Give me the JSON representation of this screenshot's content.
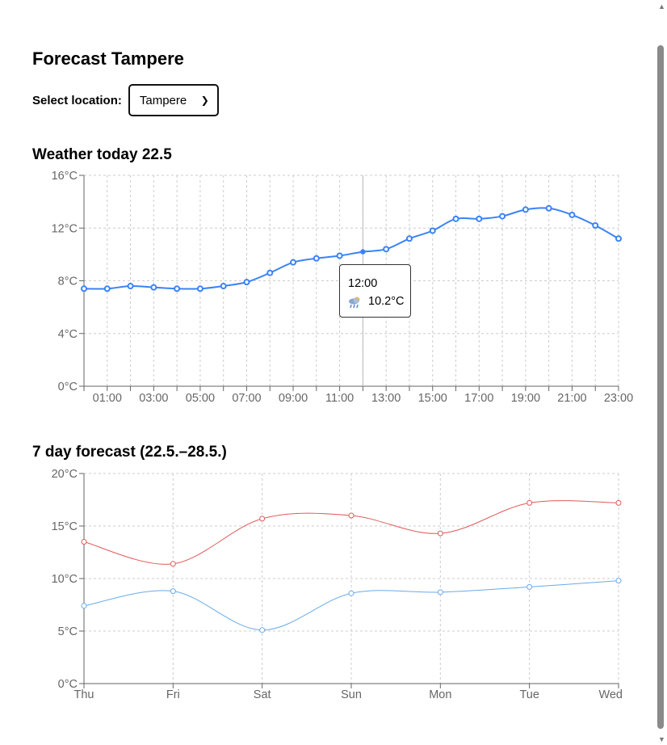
{
  "page": {
    "title": "Forecast Tampere"
  },
  "location": {
    "label": "Select location:",
    "selected": "Tampere"
  },
  "today": {
    "title": "Weather today 22.5",
    "tooltip": {
      "time": "12:00",
      "temp": "10.2°C",
      "icon": "rain-cloud-sun-icon"
    },
    "color": "#3b82f6"
  },
  "week": {
    "title": "7 day forecast (22.5.–28.5.)",
    "max_color": "#e05a5a",
    "min_color": "#6aaae8"
  },
  "chart_data": [
    {
      "type": "line",
      "x": [
        "00:00",
        "01:00",
        "02:00",
        "03:00",
        "04:00",
        "05:00",
        "06:00",
        "07:00",
        "08:00",
        "09:00",
        "10:00",
        "11:00",
        "12:00",
        "13:00",
        "14:00",
        "15:00",
        "16:00",
        "17:00",
        "18:00",
        "19:00",
        "20:00",
        "21:00",
        "22:00",
        "23:00"
      ],
      "xticks": [
        "01:00",
        "03:00",
        "05:00",
        "07:00",
        "09:00",
        "11:00",
        "13:00",
        "15:00",
        "17:00",
        "19:00",
        "21:00",
        "23:00"
      ],
      "values": [
        7.4,
        7.4,
        7.6,
        7.5,
        7.4,
        7.4,
        7.6,
        7.9,
        8.6,
        9.4,
        9.7,
        9.9,
        10.2,
        10.4,
        11.2,
        11.8,
        12.7,
        12.7,
        12.9,
        13.4,
        13.5,
        13.0,
        12.2,
        11.2
      ],
      "yticks": [
        "0°C",
        "4°C",
        "8°C",
        "12°C",
        "16°C"
      ],
      "ylim": [
        0,
        16
      ],
      "grid": true,
      "highlight": "12:00"
    },
    {
      "type": "line",
      "categories": [
        "Thu",
        "Fri",
        "Sat",
        "Sun",
        "Mon",
        "Tue",
        "Wed"
      ],
      "series": [
        {
          "values": [
            13.5,
            11.4,
            15.7,
            16.0,
            14.3,
            17.2,
            17.2
          ],
          "color": "#e05a5a"
        },
        {
          "values": [
            7.4,
            8.8,
            5.1,
            8.6,
            8.7,
            9.2,
            9.8
          ],
          "color": "#6aaae8"
        }
      ],
      "yticks": [
        "0°C",
        "5°C",
        "10°C",
        "15°C",
        "20°C"
      ],
      "ylim": [
        0,
        20
      ],
      "grid": true
    }
  ]
}
